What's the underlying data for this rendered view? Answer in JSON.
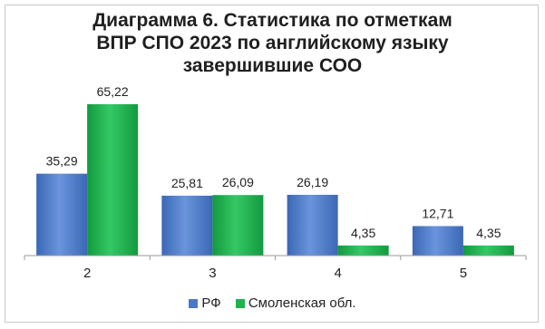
{
  "title_lines": [
    "Диаграмма 6. Статистика по отметкам",
    "ВПР СПО 2023 по английскому языку",
    "завершившие СОО"
  ],
  "colors": {
    "series1": "#4a78c8",
    "series2": "#1fb24f",
    "axis": "#9a9a9a"
  },
  "chart_data": {
    "type": "bar",
    "title": "Диаграмма 6. Статистика по отметкам ВПР СПО 2023 по английскому языку завершившие СОО",
    "categories": [
      "2",
      "3",
      "4",
      "5"
    ],
    "series": [
      {
        "name": "РФ",
        "values": [
          35.29,
          25.81,
          26.19,
          12.71
        ],
        "labels": [
          "35,29",
          "25,81",
          "26,19",
          "12,71"
        ]
      },
      {
        "name": "Смоленская обл.",
        "values": [
          65.22,
          26.09,
          4.35,
          4.35
        ],
        "labels": [
          "65,22",
          "26,09",
          "4,35",
          "4,35"
        ]
      }
    ],
    "ylim": [
      0,
      65.22
    ],
    "grid": false,
    "legend": "bottom"
  }
}
